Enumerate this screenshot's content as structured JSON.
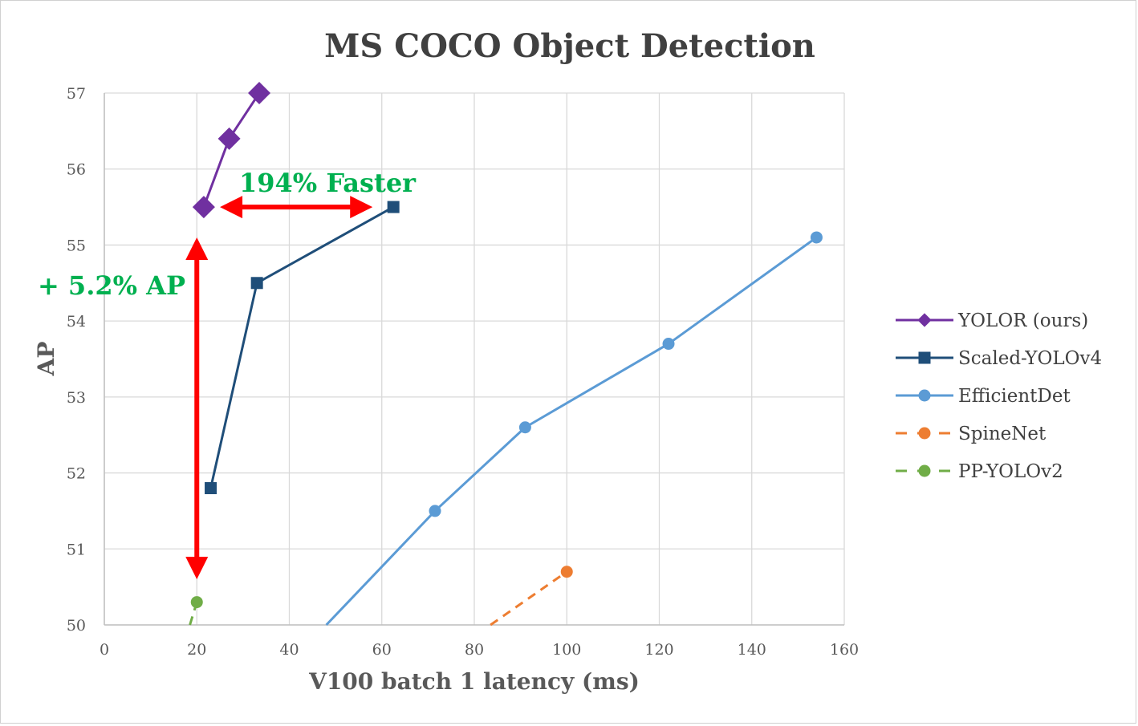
{
  "chart_data": {
    "type": "line",
    "title": "MS COCO Object Detection",
    "xlabel": "V100 batch 1 latency (ms)",
    "ylabel": "AP",
    "xlim": [
      0,
      160
    ],
    "ylim": [
      50,
      57
    ],
    "x_ticks": [
      "0",
      "20",
      "40",
      "60",
      "80",
      "100",
      "120",
      "140",
      "160"
    ],
    "y_ticks": [
      "50",
      "51",
      "52",
      "53",
      "54",
      "55",
      "56",
      "57"
    ],
    "grid": true,
    "legend_position": "right",
    "series": [
      {
        "name": "YOLOR (ours)",
        "color": "#7030A0",
        "marker": "diamond",
        "dash": false,
        "points": [
          {
            "x": 21.5,
            "y": 55.5
          },
          {
            "x": 27,
            "y": 56.4
          },
          {
            "x": 33.5,
            "y": 57.0
          }
        ]
      },
      {
        "name": "Scaled-YOLOv4",
        "color": "#1F4E79",
        "marker": "square",
        "dash": false,
        "points": [
          {
            "x": 23,
            "y": 51.8
          },
          {
            "x": 33,
            "y": 54.5
          },
          {
            "x": 62.5,
            "y": 55.5
          }
        ]
      },
      {
        "name": "EfficientDet",
        "color": "#5B9BD5",
        "marker": "circle",
        "dash": false,
        "points": [
          {
            "x": 48,
            "y": 50.0
          },
          {
            "x": 71.5,
            "y": 51.5
          },
          {
            "x": 91,
            "y": 52.6
          },
          {
            "x": 122,
            "y": 53.7
          },
          {
            "x": 154,
            "y": 55.1
          }
        ]
      },
      {
        "name": "SpineNet",
        "color": "#ED7D31",
        "marker": "circle",
        "dash": true,
        "points": [
          {
            "x": 83.5,
            "y": 50.0
          },
          {
            "x": 100,
            "y": 50.7
          }
        ]
      },
      {
        "name": "PP-YOLOv2",
        "color": "#70AD47",
        "marker": "circle",
        "dash": true,
        "points": [
          {
            "x": 18.5,
            "y": 50.0
          },
          {
            "x": 20,
            "y": 50.3
          }
        ]
      }
    ],
    "annotations": [
      {
        "text": "194% Faster",
        "color": "#00B050"
      },
      {
        "text": "+ 5.2% AP",
        "color": "#00B050"
      }
    ],
    "arrows": [
      {
        "color": "#FF0000",
        "from": {
          "x": 25,
          "y": 55.5
        },
        "to": {
          "x": 58,
          "y": 55.5
        }
      },
      {
        "color": "#FF0000",
        "from": {
          "x": 20,
          "y": 55.1
        },
        "to": {
          "x": 20,
          "y": 50.6
        }
      }
    ]
  }
}
